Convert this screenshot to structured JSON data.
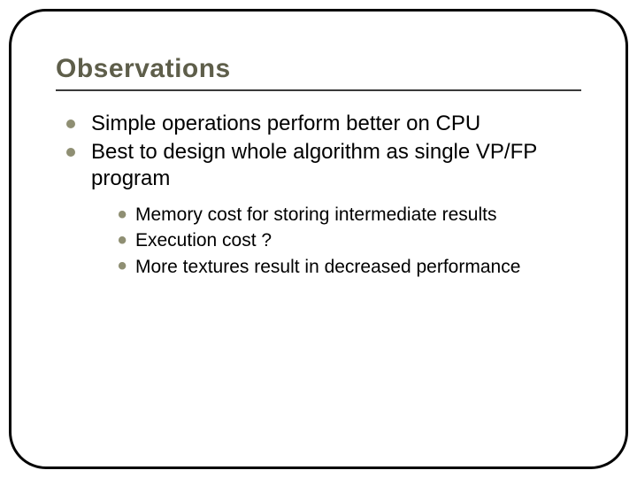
{
  "slide": {
    "title": "Observations",
    "title_color": "#5e5e4a",
    "title_fontsize": 30,
    "underline_color": "#3a3a3a",
    "border_color": "#000000",
    "border_radius": 42,
    "background": "#ffffff",
    "bullets": [
      {
        "text": "Simple operations perform better on CPU"
      },
      {
        "text": "Best to design whole algorithm as single VP/FP program"
      }
    ],
    "bullet_fontsize": 24,
    "bullet_marker_color": "#8f8f73",
    "sub_bullets": [
      {
        "text": "Memory cost for storing intermediate results"
      },
      {
        "text": "Execution cost ?"
      },
      {
        "text": "More textures result in decreased performance"
      }
    ],
    "sub_bullet_fontsize": 21,
    "sub_bullet_marker_color": "#8f8f73"
  }
}
